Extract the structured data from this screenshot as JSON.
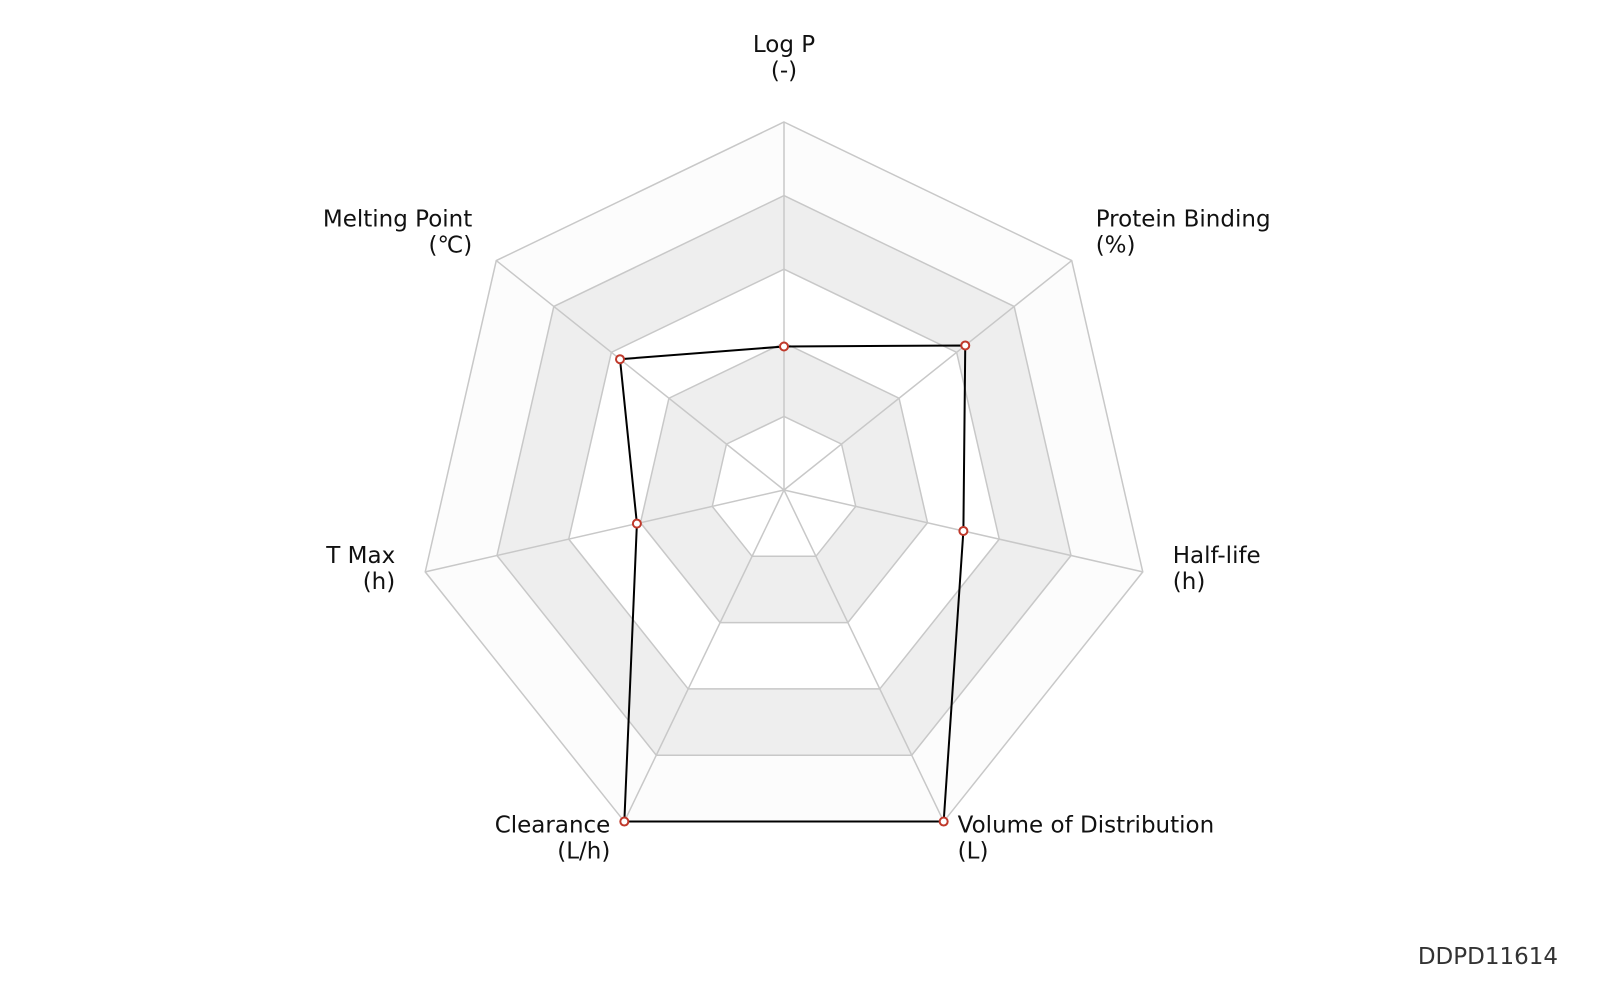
{
  "chart_data": {
    "type": "radar",
    "categories": [
      "Log P",
      "Protein Binding",
      "Half-life",
      "Volume of Distribution",
      "Clearance",
      "T Max",
      "Melting Point"
    ],
    "units": [
      "(-)",
      "(%)",
      "(h)",
      "(L)",
      "(L/h)",
      "(h)",
      "(℃)"
    ],
    "series": [
      {
        "color": "#000000",
        "marker_color": "#c0392b",
        "values": [
          0.39,
          0.63,
          0.5,
          1.0,
          1.0,
          0.41,
          0.57
        ]
      }
    ],
    "rlim": [
      0,
      1
    ],
    "rticks": [
      0.2,
      0.4,
      0.6,
      0.8,
      1.0
    ],
    "grid": true,
    "watermark": "DDPD11614"
  }
}
